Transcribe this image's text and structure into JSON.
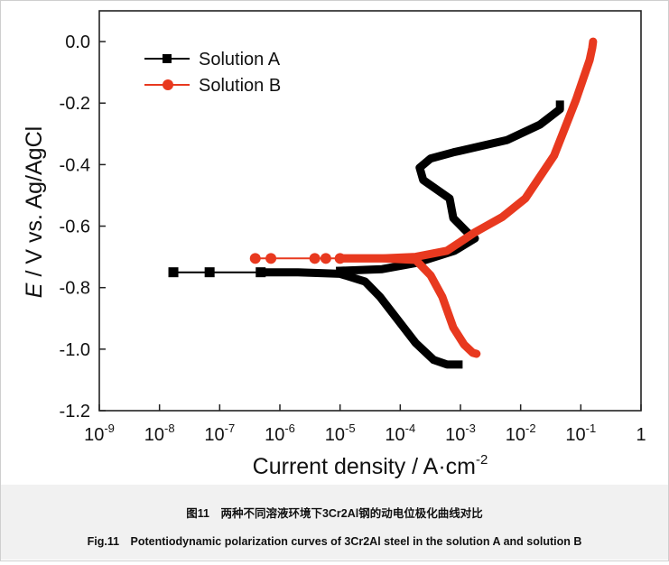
{
  "chart_data": {
    "type": "line",
    "title": "",
    "xlabel": "Current density / A·cm",
    "xlabel_sup": "-2",
    "ylabel_italic": "E",
    "ylabel": " / V vs. Ag/AgCl",
    "xscale": "log",
    "xlim": [
      1e-09,
      1
    ],
    "ylim": [
      -1.2,
      0.1
    ],
    "xticks": [
      {
        "base": "10",
        "exp": "-9"
      },
      {
        "base": "10",
        "exp": "-8"
      },
      {
        "base": "10",
        "exp": "-7"
      },
      {
        "base": "10",
        "exp": "-6"
      },
      {
        "base": "10",
        "exp": "-5"
      },
      {
        "base": "10",
        "exp": "-4"
      },
      {
        "base": "10",
        "exp": "-3"
      },
      {
        "base": "10",
        "exp": "-2"
      },
      {
        "base": "10",
        "exp": "-1"
      },
      {
        "base": "1",
        "exp": ""
      }
    ],
    "yticks": [
      "0.0",
      "-0.2",
      "-0.4",
      "-0.6",
      "-0.8",
      "-1.0",
      "-1.2"
    ],
    "grid": false,
    "legend": "top-left",
    "series": [
      {
        "name": "Solution A",
        "color": "#000000",
        "marker": "square",
        "markers": [
          [
            1.7e-08,
            -0.75
          ],
          [
            6.8e-08,
            -0.75
          ],
          [
            4.8e-07,
            -0.75
          ]
        ],
        "x": [
          1.7e-08,
          6.8e-08,
          4.8e-07,
          2e-06,
          1e-05,
          2.6e-05,
          4.6e-05,
          0.00018,
          0.00036,
          0.0006,
          0.00093
        ],
        "y": [
          -0.75,
          -0.75,
          -0.75,
          -0.75,
          -0.755,
          -0.78,
          -0.83,
          -0.98,
          -1.035,
          -1.05,
          -1.05
        ],
        "anodic_x": [
          1e-05,
          5e-05,
          0.00018,
          0.0008,
          0.00174,
          0.0013,
          0.00076,
          0.00066,
          0.00024,
          0.00021,
          0.00032,
          0.00076,
          0.006,
          0.021,
          0.045,
          0.045
        ],
        "anodic_y": [
          -0.745,
          -0.74,
          -0.72,
          -0.68,
          -0.64,
          -0.62,
          -0.574,
          -0.51,
          -0.45,
          -0.41,
          -0.38,
          -0.36,
          -0.32,
          -0.27,
          -0.22,
          -0.205
        ]
      },
      {
        "name": "Solution B",
        "color": "#e8391f",
        "marker": "circle",
        "markers": [
          [
            3.9e-07,
            -0.705
          ],
          [
            7.1e-07,
            -0.705
          ],
          [
            3.8e-06,
            -0.705
          ],
          [
            5.8e-06,
            -0.705
          ],
          [
            1e-05,
            -0.705
          ]
        ],
        "x": [
          3.9e-07,
          7.1e-07,
          3.8e-06,
          5.8e-06,
          1e-05,
          5e-05,
          0.00018,
          0.00032,
          0.0005,
          0.00076,
          0.00115,
          0.0016,
          0.00185
        ],
        "y": [
          -0.705,
          -0.705,
          -0.705,
          -0.705,
          -0.705,
          -0.705,
          -0.71,
          -0.76,
          -0.83,
          -0.93,
          -0.985,
          -1.012,
          -1.015
        ],
        "anodic_x": [
          1e-05,
          5e-05,
          0.00018,
          0.0006,
          0.00174,
          0.005,
          0.012,
          0.036,
          0.083,
          0.14,
          0.155,
          0.16
        ],
        "anodic_y": [
          -0.705,
          -0.705,
          -0.7,
          -0.68,
          -0.62,
          -0.57,
          -0.51,
          -0.37,
          -0.19,
          -0.06,
          -0.02,
          0.0
        ]
      }
    ]
  },
  "caption": {
    "chinese": "图11　两种不同溶液环境下3Cr2Al钢的动电位极化曲线对比",
    "english": "Fig.11　Potentiodynamic polarization curves of 3Cr2Al steel in the solution A and solution B"
  }
}
